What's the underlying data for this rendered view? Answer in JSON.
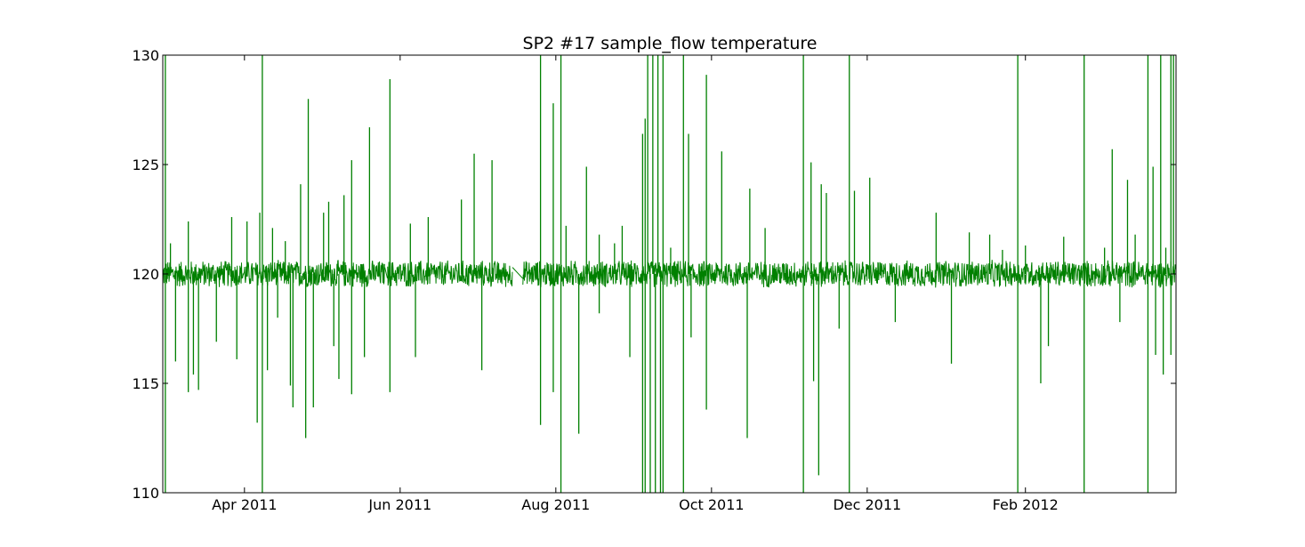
{
  "chart_data": {
    "type": "line",
    "title": "SP2 #17 sample_flow temperature",
    "xlabel": "",
    "ylabel": "",
    "x_range": [
      "2011-02-28",
      "2012-03-31"
    ],
    "ylim": [
      110,
      130
    ],
    "y_ticks": [
      110,
      115,
      120,
      125,
      130
    ],
    "x_ticks": [
      {
        "date": "2011-04-01",
        "label": "Apr 2011"
      },
      {
        "date": "2011-06-01",
        "label": "Jun 2011"
      },
      {
        "date": "2011-08-01",
        "label": "Aug 2011"
      },
      {
        "date": "2011-10-01",
        "label": "Oct 2011"
      },
      {
        "date": "2011-12-01",
        "label": "Dec 2011"
      },
      {
        "date": "2012-02-01",
        "label": "Feb 2012"
      }
    ],
    "grid": false,
    "series": [
      {
        "color": "#008000",
        "baseline": 120,
        "band_low": 119.4,
        "band_high": 120.6,
        "gaps": [
          [
            "2011-05-26",
            "2011-05-27"
          ],
          [
            "2011-07-15",
            "2011-07-19"
          ],
          [
            "2011-11-08",
            "2011-11-09"
          ]
        ],
        "spikes": [
          [
            "2011-03-01",
            130
          ],
          [
            "2011-03-01",
            110
          ],
          [
            "2011-03-03",
            121.4
          ],
          [
            "2011-03-05",
            116
          ],
          [
            "2011-03-10",
            122.4
          ],
          [
            "2011-03-10",
            114.6
          ],
          [
            "2011-03-12",
            115.4
          ],
          [
            "2011-03-14",
            114.7
          ],
          [
            "2011-03-21",
            116.9
          ],
          [
            "2011-03-27",
            122.6
          ],
          [
            "2011-03-29",
            116.1
          ],
          [
            "2011-04-02",
            122.4
          ],
          [
            "2011-04-06",
            113.2
          ],
          [
            "2011-04-07",
            122.8
          ],
          [
            "2011-04-08",
            130
          ],
          [
            "2011-04-08",
            110
          ],
          [
            "2011-04-10",
            115.6
          ],
          [
            "2011-04-12",
            122.1
          ],
          [
            "2011-04-14",
            118
          ],
          [
            "2011-04-17",
            121.5
          ],
          [
            "2011-04-19",
            114.9
          ],
          [
            "2011-04-20",
            113.9
          ],
          [
            "2011-04-23",
            124.1
          ],
          [
            "2011-04-25",
            112.5
          ],
          [
            "2011-04-26",
            128
          ],
          [
            "2011-04-28",
            113.9
          ],
          [
            "2011-05-02",
            122.8
          ],
          [
            "2011-05-04",
            123.3
          ],
          [
            "2011-05-06",
            116.7
          ],
          [
            "2011-05-08",
            115.2
          ],
          [
            "2011-05-10",
            123.6
          ],
          [
            "2011-05-13",
            125.2
          ],
          [
            "2011-05-13",
            114.5
          ],
          [
            "2011-05-18",
            116.2
          ],
          [
            "2011-05-20",
            126.7
          ],
          [
            "2011-05-28",
            128.9
          ],
          [
            "2011-05-28",
            114.6
          ],
          [
            "2011-06-05",
            122.3
          ],
          [
            "2011-06-07",
            116.2
          ],
          [
            "2011-06-12",
            122.6
          ],
          [
            "2011-06-25",
            123.4
          ],
          [
            "2011-06-30",
            125.5
          ],
          [
            "2011-07-03",
            115.6
          ],
          [
            "2011-07-07",
            125.2
          ],
          [
            "2011-07-26",
            130
          ],
          [
            "2011-07-26",
            113.1
          ],
          [
            "2011-07-31",
            127.8
          ],
          [
            "2011-07-31",
            114.6
          ],
          [
            "2011-08-03",
            130
          ],
          [
            "2011-08-03",
            110
          ],
          [
            "2011-08-05",
            122.2
          ],
          [
            "2011-08-10",
            112.7
          ],
          [
            "2011-08-13",
            124.9
          ],
          [
            "2011-08-18",
            121.8
          ],
          [
            "2011-08-18",
            118.2
          ],
          [
            "2011-08-24",
            121.4
          ],
          [
            "2011-08-27",
            122.2
          ],
          [
            "2011-08-30",
            116.2
          ],
          [
            "2011-09-04",
            110
          ],
          [
            "2011-09-04",
            126.4
          ],
          [
            "2011-09-05",
            127.1
          ],
          [
            "2011-09-05",
            110
          ],
          [
            "2011-09-06",
            130
          ],
          [
            "2011-09-07",
            110
          ],
          [
            "2011-09-08",
            130
          ],
          [
            "2011-09-09",
            110
          ],
          [
            "2011-09-10",
            130
          ],
          [
            "2011-09-11",
            110
          ],
          [
            "2011-09-12",
            130
          ],
          [
            "2011-09-12",
            110
          ],
          [
            "2011-09-15",
            121.2
          ],
          [
            "2011-09-20",
            110
          ],
          [
            "2011-09-20",
            130
          ],
          [
            "2011-09-22",
            126.4
          ],
          [
            "2011-09-23",
            117.1
          ],
          [
            "2011-09-29",
            129.1
          ],
          [
            "2011-09-29",
            113.8
          ],
          [
            "2011-10-05",
            125.6
          ],
          [
            "2011-10-15",
            112.5
          ],
          [
            "2011-10-16",
            123.9
          ],
          [
            "2011-10-22",
            122.1
          ],
          [
            "2011-11-06",
            130
          ],
          [
            "2011-11-06",
            110
          ],
          [
            "2011-11-09",
            125.1
          ],
          [
            "2011-11-10",
            115.1
          ],
          [
            "2011-11-12",
            110.8
          ],
          [
            "2011-11-13",
            124.1
          ],
          [
            "2011-11-15",
            123.7
          ],
          [
            "2011-11-20",
            117.5
          ],
          [
            "2011-11-24",
            130
          ],
          [
            "2011-11-24",
            110
          ],
          [
            "2011-11-26",
            123.8
          ],
          [
            "2011-12-02",
            124.4
          ],
          [
            "2011-12-12",
            117.8
          ],
          [
            "2011-12-28",
            122.8
          ],
          [
            "2012-01-03",
            115.9
          ],
          [
            "2012-01-10",
            121.9
          ],
          [
            "2012-01-18",
            121.8
          ],
          [
            "2012-01-23",
            121.1
          ],
          [
            "2012-01-29",
            130
          ],
          [
            "2012-01-29",
            110
          ],
          [
            "2012-02-01",
            121.3
          ],
          [
            "2012-02-07",
            115
          ],
          [
            "2012-02-10",
            116.7
          ],
          [
            "2012-02-16",
            121.7
          ],
          [
            "2012-02-24",
            130
          ],
          [
            "2012-02-24",
            110
          ],
          [
            "2012-03-03",
            121.2
          ],
          [
            "2012-03-06",
            125.7
          ],
          [
            "2012-03-09",
            117.8
          ],
          [
            "2012-03-12",
            124.3
          ],
          [
            "2012-03-15",
            121.8
          ],
          [
            "2012-03-20",
            130
          ],
          [
            "2012-03-20",
            110
          ],
          [
            "2012-03-22",
            124.9
          ],
          [
            "2012-03-23",
            116.3
          ],
          [
            "2012-03-25",
            130
          ],
          [
            "2012-03-26",
            115.4
          ],
          [
            "2012-03-27",
            121.2
          ],
          [
            "2012-03-29",
            130
          ],
          [
            "2012-03-29",
            116.3
          ],
          [
            "2012-03-30",
            130
          ]
        ]
      }
    ]
  }
}
